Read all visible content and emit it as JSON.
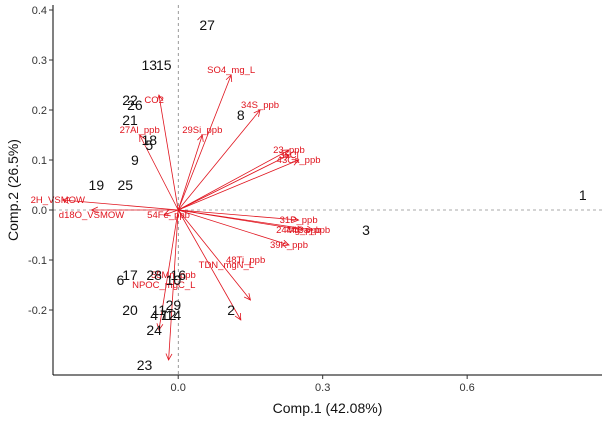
{
  "chart_data": {
    "type": "scatter",
    "title": "",
    "xlabel": "Comp.1 (42.08%)",
    "ylabel": "Comp.2 (26.5%)",
    "xlim": [
      -0.26,
      0.88
    ],
    "ylim": [
      -0.33,
      0.41
    ],
    "xticks": [
      0.0,
      0.3,
      0.6
    ],
    "yticks": [
      -0.2,
      -0.1,
      0.0,
      0.1,
      0.2,
      0.3,
      0.4
    ],
    "xtick_labels": [
      "0.0",
      "0.3",
      "0.6"
    ],
    "ytick_labels": [
      "-0.2",
      "-0.1",
      "0.0",
      "0.1",
      "0.2",
      "0.3",
      "0.4"
    ],
    "grid": false,
    "observation_color": "#111111",
    "vector_color": "#e0141e",
    "observations": [
      {
        "label": "1",
        "x": 0.84,
        "y": 0.03
      },
      {
        "label": "2",
        "x": 0.11,
        "y": -0.2
      },
      {
        "label": "3",
        "x": 0.39,
        "y": -0.04
      },
      {
        "label": "4",
        "x": -0.05,
        "y": -0.21
      },
      {
        "label": "5",
        "x": -0.06,
        "y": 0.13
      },
      {
        "label": "6",
        "x": -0.12,
        "y": -0.14
      },
      {
        "label": "7",
        "x": -0.03,
        "y": -0.21
      },
      {
        "label": "8",
        "x": 0.13,
        "y": 0.19
      },
      {
        "label": "9",
        "x": -0.09,
        "y": 0.1
      },
      {
        "label": "10",
        "x": -0.01,
        "y": -0.14
      },
      {
        "label": "11",
        "x": -0.04,
        "y": -0.2
      },
      {
        "label": "12",
        "x": -0.02,
        "y": -0.21
      },
      {
        "label": "13",
        "x": -0.06,
        "y": 0.29
      },
      {
        "label": "14",
        "x": -0.01,
        "y": -0.21
      },
      {
        "label": "15",
        "x": -0.03,
        "y": 0.29
      },
      {
        "label": "16",
        "x": 0.0,
        "y": -0.13
      },
      {
        "label": "17",
        "x": -0.1,
        "y": -0.13
      },
      {
        "label": "18",
        "x": -0.06,
        "y": 0.14
      },
      {
        "label": "19",
        "x": -0.17,
        "y": 0.05
      },
      {
        "label": "20",
        "x": -0.1,
        "y": -0.2
      },
      {
        "label": "21",
        "x": -0.1,
        "y": 0.18
      },
      {
        "label": "22",
        "x": -0.1,
        "y": 0.22
      },
      {
        "label": "23",
        "x": -0.07,
        "y": -0.31
      },
      {
        "label": "24",
        "x": -0.05,
        "y": -0.24
      },
      {
        "label": "25",
        "x": -0.11,
        "y": 0.05
      },
      {
        "label": "26",
        "x": -0.09,
        "y": 0.21
      },
      {
        "label": "27",
        "x": 0.06,
        "y": 0.37
      },
      {
        "label": "28",
        "x": -0.05,
        "y": -0.13
      },
      {
        "label": "29",
        "x": -0.01,
        "y": -0.19
      }
    ],
    "vectors": [
      {
        "name": "SO4_mg_L",
        "x": 0.11,
        "y": 0.27,
        "label_x": 0.11,
        "label_y": 0.28
      },
      {
        "name": "CO2",
        "x": -0.04,
        "y": 0.23,
        "label_x": -0.05,
        "label_y": 0.22
      },
      {
        "name": "34S_ppb",
        "x": 0.17,
        "y": 0.2,
        "label_x": 0.17,
        "label_y": 0.21
      },
      {
        "name": "29Si_ppb",
        "x": 0.05,
        "y": 0.15,
        "label_x": 0.05,
        "label_y": 0.16
      },
      {
        "name": "27Al_ppb",
        "x": -0.08,
        "y": 0.15,
        "label_x": -0.08,
        "label_y": 0.16
      },
      {
        "name": "23_ppb",
        "x": 0.23,
        "y": 0.12,
        "label_x": 0.23,
        "label_y": 0.12
      },
      {
        "name": "35Cl",
        "x": 0.23,
        "y": 0.11,
        "label_x": 0.23,
        "label_y": 0.11
      },
      {
        "name": "43Ca_ppb",
        "x": 0.25,
        "y": 0.1,
        "label_x": 0.25,
        "label_y": 0.1
      },
      {
        "name": "2H_VSMOW",
        "x": -0.24,
        "y": 0.02,
        "label_x": -0.25,
        "label_y": 0.02
      },
      {
        "name": "d18O_VSMOW",
        "x": -0.18,
        "y": 0.0,
        "label_x": -0.18,
        "label_y": -0.01
      },
      {
        "name": "54Fe_ppb",
        "x": -0.03,
        "y": -0.01,
        "label_x": -0.02,
        "label_y": -0.01
      },
      {
        "name": "31P_ppb",
        "x": 0.25,
        "y": -0.02,
        "label_x": 0.25,
        "label_y": -0.02
      },
      {
        "name": "24Mg_ppb",
        "x": 0.26,
        "y": -0.04,
        "label_x": 0.25,
        "label_y": -0.04
      },
      {
        "name": "44Ca_ppb",
        "x": 0.28,
        "y": -0.04,
        "label_x": 0.27,
        "label_y": -0.04
      },
      {
        "name": "39K_ppb",
        "x": 0.23,
        "y": -0.07,
        "label_x": 0.23,
        "label_y": -0.07
      },
      {
        "name": "48Ti_ppb",
        "x": 0.15,
        "y": -0.18,
        "label_x": 0.14,
        "label_y": -0.1
      },
      {
        "name": "TDN_mgN_L",
        "x": 0.13,
        "y": -0.22,
        "label_x": 0.1,
        "label_y": -0.11
      },
      {
        "name": "55Mn_ppb",
        "x": -0.04,
        "y": -0.24,
        "label_x": -0.01,
        "label_y": -0.13
      },
      {
        "name": "NPOC_mgC_L",
        "x": -0.02,
        "y": -0.3,
        "label_x": -0.03,
        "label_y": -0.15
      }
    ]
  }
}
